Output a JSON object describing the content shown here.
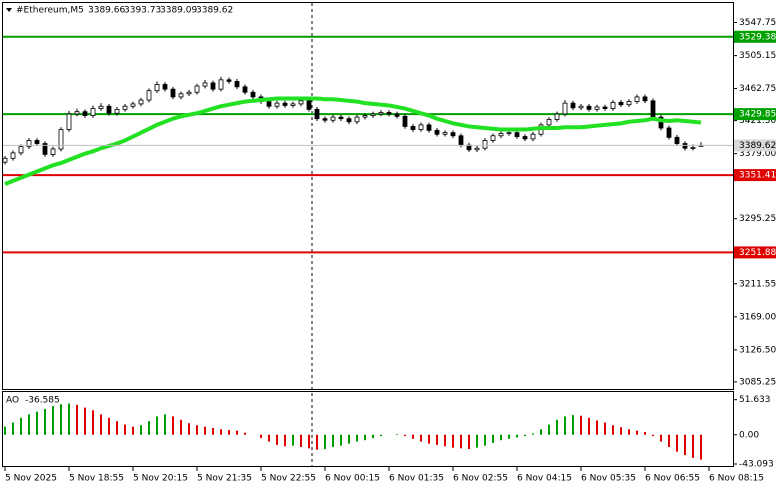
{
  "chart_data": {
    "type": "candlestick",
    "symbol": "#Ethereum,M5",
    "ylim": [
      3080,
      3569
    ],
    "yticks": [
      3547.75,
      3505.15,
      3462.75,
      {
        "value": 3421.5,
        "label": "3421.50"
      },
      {
        "value": 3379,
        "label": "3379.00"
      },
      3295.25,
      3211.55,
      {
        "value": 3169,
        "label": "3169.00"
      },
      {
        "value": 3126.5,
        "label": "3126.50"
      },
      3085.25
    ],
    "xlim": [
      0,
      88
    ],
    "xticks": [
      {
        "value": 0,
        "label": "5 Nov 2025"
      },
      {
        "value": 8,
        "label": "5 Nov 18:55"
      },
      {
        "value": 16,
        "label": "5 Nov 20:15"
      },
      {
        "value": 24,
        "label": "5 Nov 21:35"
      },
      {
        "value": 32,
        "label": "5 Nov 22:55"
      },
      {
        "value": 40,
        "label": "6 Nov 00:15"
      },
      {
        "value": 48,
        "label": "6 Nov 01:35"
      },
      {
        "value": 56,
        "label": "6 Nov 02:55"
      },
      {
        "value": 64,
        "label": "6 Nov 04:15"
      },
      {
        "value": 72,
        "label": "6 Nov 05:35"
      },
      {
        "value": 80,
        "label": "6 Nov 06:55"
      },
      {
        "value": 88,
        "label": "6 Nov 08:15"
      }
    ],
    "up_color": "#ffffff",
    "down_color": "#000000",
    "candles": [
      [
        3368,
        3376,
        3365,
        3373
      ],
      [
        3373,
        3383,
        3370,
        3380
      ],
      [
        3380,
        3391,
        3377,
        3388
      ],
      [
        3388,
        3399,
        3385,
        3396
      ],
      [
        3396,
        3399,
        3389,
        3392
      ],
      [
        3392,
        3395,
        3375,
        3378
      ],
      [
        3378,
        3388,
        3375,
        3385
      ],
      [
        3385,
        3413,
        3382,
        3410
      ],
      [
        3410,
        3434,
        3407,
        3430
      ],
      [
        3430,
        3437,
        3427,
        3433
      ],
      [
        3433,
        3436,
        3425,
        3428
      ],
      [
        3428,
        3441,
        3425,
        3437
      ],
      [
        3437,
        3444,
        3434,
        3440
      ],
      [
        3440,
        3443,
        3428,
        3431
      ],
      [
        3431,
        3439,
        3428,
        3436
      ],
      [
        3436,
        3443,
        3433,
        3440
      ],
      [
        3440,
        3446,
        3437,
        3443
      ],
      [
        3443,
        3451,
        3440,
        3448
      ],
      [
        3448,
        3463,
        3445,
        3460
      ],
      [
        3460,
        3472,
        3457,
        3468
      ],
      [
        3468,
        3471,
        3459,
        3462
      ],
      [
        3462,
        3465,
        3449,
        3452
      ],
      [
        3452,
        3459,
        3449,
        3456
      ],
      [
        3456,
        3461,
        3453,
        3458
      ],
      [
        3458,
        3469,
        3455,
        3466
      ],
      [
        3466,
        3474,
        3463,
        3470
      ],
      [
        3470,
        3473,
        3459,
        3462
      ],
      [
        3462,
        3478,
        3459,
        3474
      ],
      [
        3474,
        3477,
        3469,
        3472
      ],
      [
        3472,
        3475,
        3462,
        3465
      ],
      [
        3465,
        3468,
        3455,
        3458
      ],
      [
        3458,
        3461,
        3449,
        3452
      ],
      [
        3452,
        3455,
        3443,
        3446
      ],
      [
        3446,
        3449,
        3437,
        3440
      ],
      [
        3440,
        3447,
        3437,
        3444
      ],
      [
        3444,
        3447,
        3438,
        3441
      ],
      [
        3441,
        3446,
        3438,
        3443
      ],
      [
        3443,
        3450,
        3440,
        3447
      ],
      [
        3447,
        3450,
        3433,
        3436
      ],
      [
        3436,
        3439,
        3421,
        3424
      ],
      [
        3424,
        3427,
        3419,
        3422
      ],
      [
        3422,
        3429,
        3419,
        3426
      ],
      [
        3426,
        3429,
        3421,
        3424
      ],
      [
        3424,
        3427,
        3417,
        3420
      ],
      [
        3420,
        3429,
        3417,
        3426
      ],
      [
        3426,
        3431,
        3423,
        3428
      ],
      [
        3428,
        3433,
        3425,
        3430
      ],
      [
        3430,
        3435,
        3427,
        3432
      ],
      [
        3432,
        3435,
        3427,
        3430
      ],
      [
        3430,
        3433,
        3424,
        3427
      ],
      [
        3427,
        3430,
        3411,
        3414
      ],
      [
        3414,
        3417,
        3407,
        3410
      ],
      [
        3410,
        3419,
        3407,
        3416
      ],
      [
        3416,
        3419,
        3406,
        3409
      ],
      [
        3409,
        3412,
        3401,
        3404
      ],
      [
        3404,
        3409,
        3401,
        3406
      ],
      [
        3406,
        3409,
        3399,
        3402
      ],
      [
        3402,
        3405,
        3387,
        3390
      ],
      [
        3390,
        3393,
        3381,
        3384
      ],
      [
        3384,
        3389,
        3381,
        3386
      ],
      [
        3386,
        3399,
        3383,
        3396
      ],
      [
        3396,
        3405,
        3393,
        3402
      ],
      [
        3402,
        3408,
        3399,
        3405
      ],
      [
        3405,
        3409,
        3402,
        3406
      ],
      [
        3406,
        3409,
        3398,
        3401
      ],
      [
        3401,
        3404,
        3395,
        3398
      ],
      [
        3398,
        3407,
        3395,
        3404
      ],
      [
        3404,
        3419,
        3401,
        3416
      ],
      [
        3416,
        3426,
        3413,
        3423
      ],
      [
        3423,
        3433,
        3420,
        3430
      ],
      [
        3430,
        3448,
        3427,
        3444
      ],
      [
        3444,
        3447,
        3435,
        3438
      ],
      [
        3438,
        3443,
        3435,
        3440
      ],
      [
        3440,
        3443,
        3433,
        3436
      ],
      [
        3436,
        3442,
        3433,
        3439
      ],
      [
        3439,
        3442,
        3434,
        3437
      ],
      [
        3437,
        3448,
        3434,
        3445
      ],
      [
        3445,
        3448,
        3439,
        3442
      ],
      [
        3442,
        3449,
        3439,
        3446
      ],
      [
        3446,
        3455,
        3443,
        3452
      ],
      [
        3452,
        3455,
        3444,
        3447
      ],
      [
        3447,
        3450,
        3423,
        3426
      ],
      [
        3426,
        3429,
        3409,
        3412
      ],
      [
        3412,
        3415,
        3397,
        3400
      ],
      [
        3400,
        3403,
        3389,
        3392
      ],
      [
        3392,
        3395,
        3383,
        3386
      ],
      [
        3386,
        3391,
        3383,
        3387
      ],
      [
        3389.66,
        3393.73,
        3389.09,
        3389.62
      ]
    ],
    "moving_average": {
      "color": "#22e022",
      "values": [
        3340,
        3344,
        3348,
        3352,
        3356,
        3360,
        3364,
        3367,
        3371,
        3375,
        3379,
        3382,
        3386,
        3389,
        3392,
        3396,
        3401,
        3406,
        3411,
        3416,
        3420,
        3424,
        3427,
        3429,
        3431,
        3434,
        3437,
        3440,
        3442,
        3444,
        3446,
        3447,
        3448,
        3449,
        3450,
        3450,
        3450,
        3450,
        3450,
        3450,
        3449,
        3449,
        3448,
        3447,
        3446,
        3444,
        3443,
        3442,
        3441,
        3439,
        3437,
        3434,
        3431,
        3428,
        3424,
        3421,
        3418,
        3416,
        3414,
        3413,
        3412,
        3411,
        3410,
        3410,
        3410,
        3410,
        3411,
        3412,
        3412,
        3412,
        3413,
        3413,
        3413,
        3414,
        3415,
        3416,
        3417,
        3418,
        3420,
        3421,
        3422,
        3424,
        3422,
        3421,
        3422,
        3421,
        3420,
        3419
      ]
    },
    "levels": [
      {
        "value": 3529.38,
        "color": "#00a000"
      },
      {
        "value": 3429.85,
        "color": "#00a000"
      },
      {
        "value": 3351.41,
        "color": "#e00000"
      },
      {
        "value": 3251.88,
        "color": "#e00000"
      }
    ],
    "ao": {
      "name": "AO",
      "ylim": [
        -46,
        60
      ],
      "yticks": [
        51.633,
        {
          "value": 0,
          "label": "0.00"
        },
        -43.093
      ],
      "up_color": "#00a000",
      "down_color": "#e00000",
      "values": [
        12,
        18,
        25,
        30,
        34,
        38,
        42,
        45,
        46,
        44,
        40,
        36,
        30,
        25,
        20,
        15,
        12,
        14,
        20,
        27,
        30,
        27,
        22,
        17,
        14,
        12,
        10,
        8,
        7,
        6,
        3,
        0,
        -5,
        -10,
        -15,
        -17,
        -16,
        -18,
        -20,
        -22,
        -21,
        -18,
        -16,
        -13,
        -10,
        -8,
        -5,
        -2,
        0,
        1,
        -2,
        -6,
        -10,
        -13,
        -15,
        -17,
        -19,
        -20,
        -21,
        -19,
        -16,
        -12,
        -8,
        -6,
        -4,
        -2,
        2,
        8,
        15,
        22,
        27,
        29,
        28,
        25,
        21,
        18,
        14,
        11,
        8,
        6,
        4,
        -2,
        -10,
        -18,
        -25,
        -30,
        -34,
        -36.585
      ]
    }
  }
}
